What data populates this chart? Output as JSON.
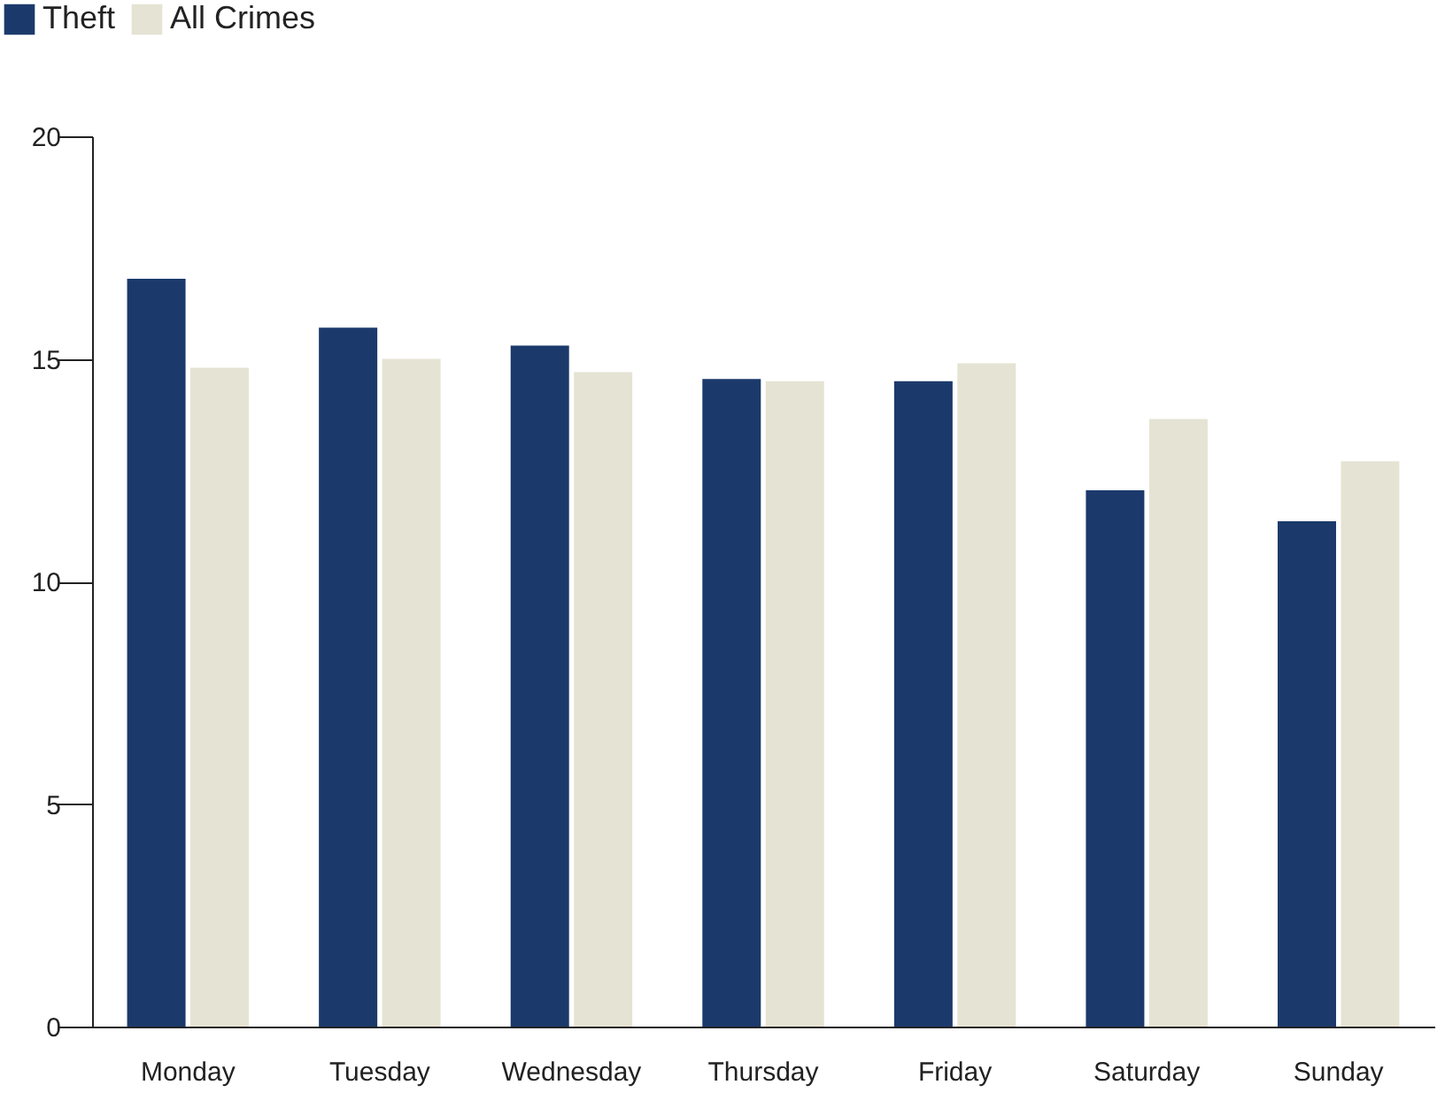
{
  "chart_data": {
    "type": "bar",
    "categories": [
      "Monday",
      "Tuesday",
      "Wednesday",
      "Thursday",
      "Friday",
      "Saturday",
      "Sunday"
    ],
    "series": [
      {
        "name": "Theft",
        "color": "#1b3a6b",
        "values": [
          16.8,
          15.7,
          15.3,
          14.55,
          14.5,
          12.05,
          11.35
        ]
      },
      {
        "name": "All Crimes",
        "color": "#e5e3d3",
        "values": [
          14.8,
          15.0,
          14.7,
          14.5,
          14.9,
          13.65,
          12.7
        ]
      }
    ],
    "ylim": [
      0,
      20
    ],
    "yticks": [
      0,
      5,
      10,
      15,
      20
    ],
    "grid": false,
    "legend": "top left"
  }
}
